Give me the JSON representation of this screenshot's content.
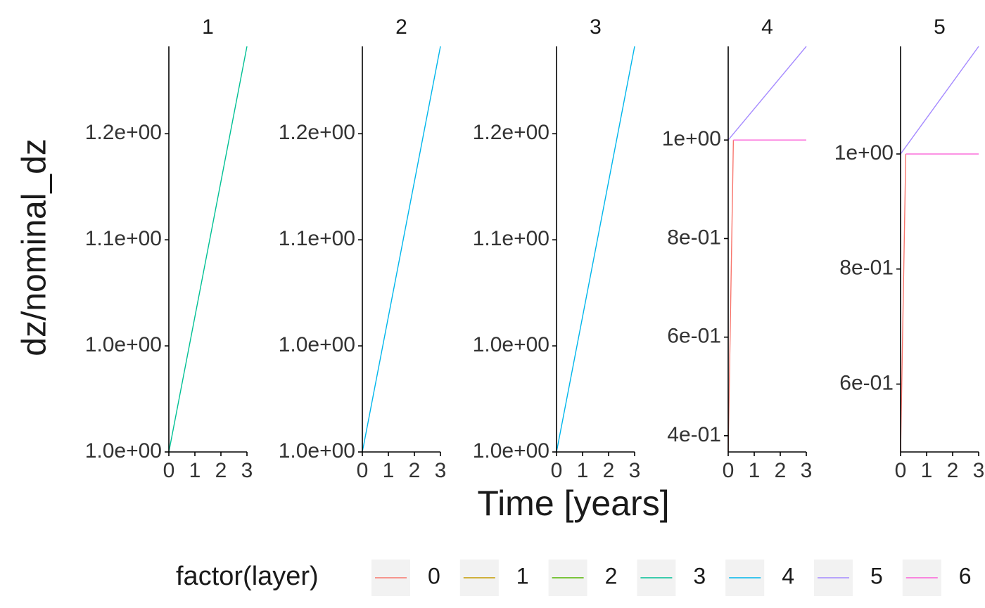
{
  "chart_data": [
    {
      "type": "line",
      "title": "1",
      "xlim": [
        0,
        3
      ],
      "xticks": [
        0,
        1,
        2,
        3
      ],
      "ylim": [
        0.998,
        1.193
      ],
      "yticks": [
        {
          "value": 0.998,
          "label": "1.0e+00"
        },
        {
          "value": 1.049,
          "label": "1.0e+00"
        },
        {
          "value": 1.1,
          "label": "1.1e+00"
        },
        {
          "value": 1.151,
          "label": "1.2e+00"
        }
      ],
      "series": [
        {
          "name": "3",
          "color": "#00C094",
          "x": [
            0,
            3
          ],
          "values": [
            0.998,
            1.193
          ]
        }
      ]
    },
    {
      "type": "line",
      "title": "2",
      "xlim": [
        0,
        3
      ],
      "xticks": [
        0,
        1,
        2,
        3
      ],
      "ylim": [
        0.998,
        1.193
      ],
      "yticks": [
        {
          "value": 0.998,
          "label": "1.0e+00"
        },
        {
          "value": 1.049,
          "label": "1.0e+00"
        },
        {
          "value": 1.1,
          "label": "1.1e+00"
        },
        {
          "value": 1.151,
          "label": "1.2e+00"
        }
      ],
      "series": [
        {
          "name": "4",
          "color": "#00B6EB",
          "x": [
            0,
            3
          ],
          "values": [
            0.998,
            1.193
          ]
        }
      ]
    },
    {
      "type": "line",
      "title": "3",
      "xlim": [
        0,
        3
      ],
      "xticks": [
        0,
        1,
        2,
        3
      ],
      "ylim": [
        0.998,
        1.193
      ],
      "yticks": [
        {
          "value": 0.998,
          "label": "1.0e+00"
        },
        {
          "value": 1.049,
          "label": "1.0e+00"
        },
        {
          "value": 1.1,
          "label": "1.1e+00"
        },
        {
          "value": 1.151,
          "label": "1.2e+00"
        }
      ],
      "series": [
        {
          "name": "4",
          "color": "#00B6EB",
          "x": [
            0,
            3
          ],
          "values": [
            0.998,
            1.193
          ]
        }
      ]
    },
    {
      "type": "line",
      "title": "4",
      "xlim": [
        0,
        3
      ],
      "xticks": [
        0,
        1,
        2,
        3
      ],
      "ylim": [
        0.367,
        1.19
      ],
      "yticks": [
        {
          "value": 0.4,
          "label": "4e-01"
        },
        {
          "value": 0.6,
          "label": "6e-01"
        },
        {
          "value": 0.8,
          "label": "8e-01"
        },
        {
          "value": 1,
          "label": "1e+00"
        }
      ],
      "series": [
        {
          "name": "0",
          "color": "#F8766D",
          "x": [
            0,
            0.2
          ],
          "values": [
            0.367,
            1.0
          ]
        },
        {
          "name": "5",
          "color": "#A58AFF",
          "x": [
            0,
            3
          ],
          "values": [
            1.0,
            1.19
          ]
        },
        {
          "name": "6",
          "color": "#FB61D7",
          "x": [
            0.2,
            3
          ],
          "values": [
            1.0,
            1.0
          ]
        }
      ]
    },
    {
      "type": "line",
      "title": "5",
      "xlim": [
        0,
        3
      ],
      "xticks": [
        0,
        1,
        2,
        3
      ],
      "ylim": [
        0.482,
        1.187
      ],
      "yticks": [
        {
          "value": 0.6,
          "label": "6e-01"
        },
        {
          "value": 0.8,
          "label": "8e-01"
        },
        {
          "value": 1,
          "label": "1e+00"
        }
      ],
      "series": [
        {
          "name": "0",
          "color": "#F8766D",
          "x": [
            0,
            0.2
          ],
          "values": [
            0.482,
            1.0
          ]
        },
        {
          "name": "5",
          "color": "#A58AFF",
          "x": [
            0,
            3
          ],
          "values": [
            1.0,
            1.187
          ]
        },
        {
          "name": "6",
          "color": "#FB61D7",
          "x": [
            0.2,
            3
          ],
          "values": [
            1.0,
            1.0
          ]
        }
      ]
    }
  ],
  "figure": {
    "xlabel": "Time [years]",
    "ylabel": "dz/nominal_dz",
    "legend_title": "factor(layer)",
    "legend": [
      {
        "name": "0",
        "color": "#F8766D"
      },
      {
        "name": "1",
        "color": "#C49A00"
      },
      {
        "name": "2",
        "color": "#53B400"
      },
      {
        "name": "3",
        "color": "#00C094"
      },
      {
        "name": "4",
        "color": "#00B6EB"
      },
      {
        "name": "5",
        "color": "#A58AFF"
      },
      {
        "name": "6",
        "color": "#FB61D7"
      }
    ]
  }
}
